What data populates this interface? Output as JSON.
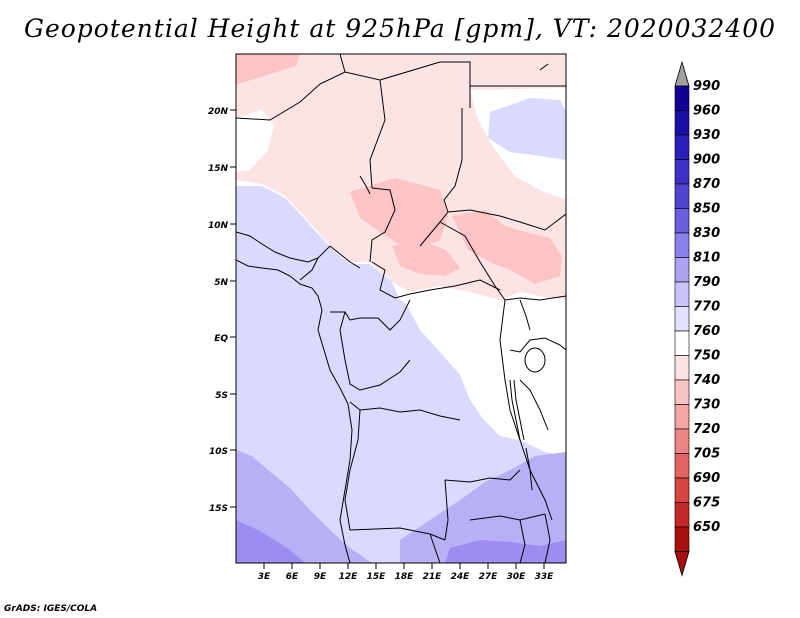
{
  "title": "Geopotential Height at 925hPa [gpm], VT: 2020032400",
  "credit": "GrADS: IGES/COLA",
  "map": {
    "lat_ticks": [
      "20N",
      "15N",
      "10N",
      "5N",
      "EQ",
      "5S",
      "10S",
      "15S"
    ],
    "lon_ticks": [
      "3E",
      "6E",
      "9E",
      "12E",
      "15E",
      "18E",
      "21E",
      "24E",
      "27E",
      "30E",
      "33E"
    ],
    "land_colors": {
      "pink_light": "#fde4e4",
      "pink_mid": "#fcc4c4",
      "lavender": "#dadaff",
      "blue_mid": "#b8b0f6",
      "blue_dark": "#9e8cf0"
    }
  },
  "colorbar": {
    "levels": [
      {
        "label": "990",
        "color": "#0f0096"
      },
      {
        "label": "960",
        "color": "#1a10a8"
      },
      {
        "label": "930",
        "color": "#2a1fb8"
      },
      {
        "label": "900",
        "color": "#3c30c6"
      },
      {
        "label": "870",
        "color": "#5044d2"
      },
      {
        "label": "850",
        "color": "#6a5fde"
      },
      {
        "label": "830",
        "color": "#8a80ea"
      },
      {
        "label": "810",
        "color": "#aaa3f4"
      },
      {
        "label": "790",
        "color": "#c8c4fa"
      },
      {
        "label": "770",
        "color": "#e2e2fe"
      },
      {
        "label": "760",
        "color": "#ffffff"
      },
      {
        "label": "750",
        "color": "#fde2e2"
      },
      {
        "label": "740",
        "color": "#fbc4c4"
      },
      {
        "label": "730",
        "color": "#f6a4a4"
      },
      {
        "label": "720",
        "color": "#ee8484"
      },
      {
        "label": "705",
        "color": "#e46464"
      },
      {
        "label": "690",
        "color": "#d84444"
      },
      {
        "label": "675",
        "color": "#c42828"
      },
      {
        "label": "650",
        "color": "#a81010"
      }
    ],
    "top_arrow_color": "#a0a0a0",
    "bottom_arrow_color": "#a81010"
  }
}
